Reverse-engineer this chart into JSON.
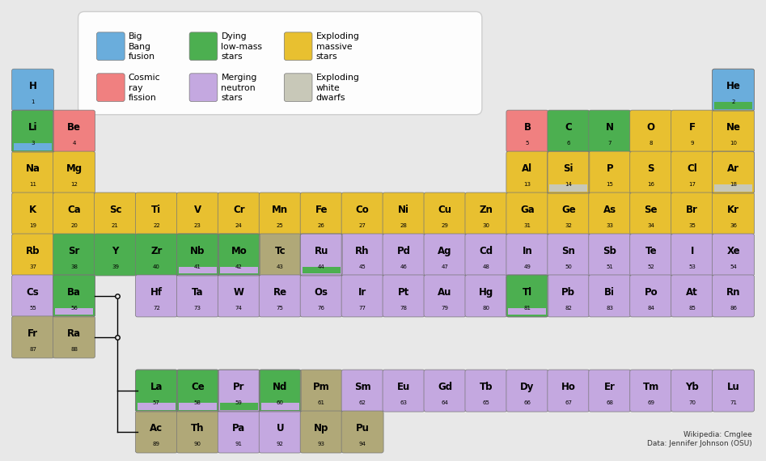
{
  "colors": {
    "big_bang": "#6aaddc",
    "dying_lowmass": "#4caf50",
    "exploding_massive": "#e8c030",
    "cosmic_ray": "#f08080",
    "merging_neutron": "#c4a8e0",
    "exploding_white": "#c8c8b8",
    "dark_tan": "#b0a878",
    "background": "#e8e8e8"
  },
  "elements": [
    {
      "sym": "H",
      "num": 1,
      "row": 0,
      "col": 0,
      "color": "big_bang"
    },
    {
      "sym": "He",
      "num": 2,
      "row": 0,
      "col": 17,
      "color": "big_bang",
      "color2": "dying_lowmass"
    },
    {
      "sym": "Li",
      "num": 3,
      "row": 1,
      "col": 0,
      "color": "dying_lowmass",
      "color2": "big_bang"
    },
    {
      "sym": "Be",
      "num": 4,
      "row": 1,
      "col": 1,
      "color": "cosmic_ray"
    },
    {
      "sym": "B",
      "num": 5,
      "row": 1,
      "col": 12,
      "color": "cosmic_ray"
    },
    {
      "sym": "C",
      "num": 6,
      "row": 1,
      "col": 13,
      "color": "dying_lowmass"
    },
    {
      "sym": "N",
      "num": 7,
      "row": 1,
      "col": 14,
      "color": "dying_lowmass"
    },
    {
      "sym": "O",
      "num": 8,
      "row": 1,
      "col": 15,
      "color": "exploding_massive"
    },
    {
      "sym": "F",
      "num": 9,
      "row": 1,
      "col": 16,
      "color": "exploding_massive"
    },
    {
      "sym": "Ne",
      "num": 10,
      "row": 1,
      "col": 17,
      "color": "exploding_massive"
    },
    {
      "sym": "Na",
      "num": 11,
      "row": 2,
      "col": 0,
      "color": "exploding_massive"
    },
    {
      "sym": "Mg",
      "num": 12,
      "row": 2,
      "col": 1,
      "color": "exploding_massive"
    },
    {
      "sym": "Al",
      "num": 13,
      "row": 2,
      "col": 12,
      "color": "exploding_massive"
    },
    {
      "sym": "Si",
      "num": 14,
      "row": 2,
      "col": 13,
      "color": "exploding_massive",
      "color2": "exploding_white"
    },
    {
      "sym": "P",
      "num": 15,
      "row": 2,
      "col": 14,
      "color": "exploding_massive"
    },
    {
      "sym": "S",
      "num": 16,
      "row": 2,
      "col": 15,
      "color": "exploding_massive"
    },
    {
      "sym": "Cl",
      "num": 17,
      "row": 2,
      "col": 16,
      "color": "exploding_massive"
    },
    {
      "sym": "Ar",
      "num": 18,
      "row": 2,
      "col": 17,
      "color": "exploding_massive",
      "color2": "exploding_white"
    },
    {
      "sym": "K",
      "num": 19,
      "row": 3,
      "col": 0,
      "color": "exploding_massive"
    },
    {
      "sym": "Ca",
      "num": 20,
      "row": 3,
      "col": 1,
      "color": "exploding_massive"
    },
    {
      "sym": "Sc",
      "num": 21,
      "row": 3,
      "col": 2,
      "color": "exploding_massive"
    },
    {
      "sym": "Ti",
      "num": 22,
      "row": 3,
      "col": 3,
      "color": "exploding_massive"
    },
    {
      "sym": "V",
      "num": 23,
      "row": 3,
      "col": 4,
      "color": "exploding_massive"
    },
    {
      "sym": "Cr",
      "num": 24,
      "row": 3,
      "col": 5,
      "color": "exploding_massive"
    },
    {
      "sym": "Mn",
      "num": 25,
      "row": 3,
      "col": 6,
      "color": "exploding_massive"
    },
    {
      "sym": "Fe",
      "num": 26,
      "row": 3,
      "col": 7,
      "color": "exploding_massive"
    },
    {
      "sym": "Co",
      "num": 27,
      "row": 3,
      "col": 8,
      "color": "exploding_massive"
    },
    {
      "sym": "Ni",
      "num": 28,
      "row": 3,
      "col": 9,
      "color": "exploding_massive"
    },
    {
      "sym": "Cu",
      "num": 29,
      "row": 3,
      "col": 10,
      "color": "exploding_massive"
    },
    {
      "sym": "Zn",
      "num": 30,
      "row": 3,
      "col": 11,
      "color": "exploding_massive"
    },
    {
      "sym": "Ga",
      "num": 31,
      "row": 3,
      "col": 12,
      "color": "exploding_massive"
    },
    {
      "sym": "Ge",
      "num": 32,
      "row": 3,
      "col": 13,
      "color": "exploding_massive"
    },
    {
      "sym": "As",
      "num": 33,
      "row": 3,
      "col": 14,
      "color": "exploding_massive"
    },
    {
      "sym": "Se",
      "num": 34,
      "row": 3,
      "col": 15,
      "color": "exploding_massive"
    },
    {
      "sym": "Br",
      "num": 35,
      "row": 3,
      "col": 16,
      "color": "exploding_massive"
    },
    {
      "sym": "Kr",
      "num": 36,
      "row": 3,
      "col": 17,
      "color": "exploding_massive"
    },
    {
      "sym": "Rb",
      "num": 37,
      "row": 4,
      "col": 0,
      "color": "exploding_massive"
    },
    {
      "sym": "Sr",
      "num": 38,
      "row": 4,
      "col": 1,
      "color": "dying_lowmass"
    },
    {
      "sym": "Y",
      "num": 39,
      "row": 4,
      "col": 2,
      "color": "dying_lowmass"
    },
    {
      "sym": "Zr",
      "num": 40,
      "row": 4,
      "col": 3,
      "color": "dying_lowmass"
    },
    {
      "sym": "Nb",
      "num": 41,
      "row": 4,
      "col": 4,
      "color": "dying_lowmass",
      "color2": "merging_neutron"
    },
    {
      "sym": "Mo",
      "num": 42,
      "row": 4,
      "col": 5,
      "color": "dying_lowmass",
      "color2": "merging_neutron"
    },
    {
      "sym": "Tc",
      "num": 43,
      "row": 4,
      "col": 6,
      "color": "dark_tan"
    },
    {
      "sym": "Ru",
      "num": 44,
      "row": 4,
      "col": 7,
      "color": "merging_neutron",
      "color2": "dying_lowmass"
    },
    {
      "sym": "Rh",
      "num": 45,
      "row": 4,
      "col": 8,
      "color": "merging_neutron"
    },
    {
      "sym": "Pd",
      "num": 46,
      "row": 4,
      "col": 9,
      "color": "merging_neutron"
    },
    {
      "sym": "Ag",
      "num": 47,
      "row": 4,
      "col": 10,
      "color": "merging_neutron"
    },
    {
      "sym": "Cd",
      "num": 48,
      "row": 4,
      "col": 11,
      "color": "merging_neutron"
    },
    {
      "sym": "In",
      "num": 49,
      "row": 4,
      "col": 12,
      "color": "merging_neutron"
    },
    {
      "sym": "Sn",
      "num": 50,
      "row": 4,
      "col": 13,
      "color": "merging_neutron"
    },
    {
      "sym": "Sb",
      "num": 51,
      "row": 4,
      "col": 14,
      "color": "merging_neutron"
    },
    {
      "sym": "Te",
      "num": 52,
      "row": 4,
      "col": 15,
      "color": "merging_neutron"
    },
    {
      "sym": "I",
      "num": 53,
      "row": 4,
      "col": 16,
      "color": "merging_neutron"
    },
    {
      "sym": "Xe",
      "num": 54,
      "row": 4,
      "col": 17,
      "color": "merging_neutron"
    },
    {
      "sym": "Cs",
      "num": 55,
      "row": 5,
      "col": 0,
      "color": "merging_neutron"
    },
    {
      "sym": "Ba",
      "num": 56,
      "row": 5,
      "col": 1,
      "color": "dying_lowmass",
      "color2": "merging_neutron"
    },
    {
      "sym": "Hf",
      "num": 72,
      "row": 5,
      "col": 3,
      "color": "merging_neutron"
    },
    {
      "sym": "Ta",
      "num": 73,
      "row": 5,
      "col": 4,
      "color": "merging_neutron"
    },
    {
      "sym": "W",
      "num": 74,
      "row": 5,
      "col": 5,
      "color": "merging_neutron"
    },
    {
      "sym": "Re",
      "num": 75,
      "row": 5,
      "col": 6,
      "color": "merging_neutron"
    },
    {
      "sym": "Os",
      "num": 76,
      "row": 5,
      "col": 7,
      "color": "merging_neutron"
    },
    {
      "sym": "Ir",
      "num": 77,
      "row": 5,
      "col": 8,
      "color": "merging_neutron"
    },
    {
      "sym": "Pt",
      "num": 78,
      "row": 5,
      "col": 9,
      "color": "merging_neutron"
    },
    {
      "sym": "Au",
      "num": 79,
      "row": 5,
      "col": 10,
      "color": "merging_neutron"
    },
    {
      "sym": "Hg",
      "num": 80,
      "row": 5,
      "col": 11,
      "color": "merging_neutron"
    },
    {
      "sym": "Tl",
      "num": 81,
      "row": 5,
      "col": 12,
      "color": "dying_lowmass",
      "color2": "merging_neutron"
    },
    {
      "sym": "Pb",
      "num": 82,
      "row": 5,
      "col": 13,
      "color": "merging_neutron"
    },
    {
      "sym": "Bi",
      "num": 83,
      "row": 5,
      "col": 14,
      "color": "merging_neutron"
    },
    {
      "sym": "Po",
      "num": 84,
      "row": 5,
      "col": 15,
      "color": "merging_neutron"
    },
    {
      "sym": "At",
      "num": 85,
      "row": 5,
      "col": 16,
      "color": "merging_neutron"
    },
    {
      "sym": "Rn",
      "num": 86,
      "row": 5,
      "col": 17,
      "color": "merging_neutron"
    },
    {
      "sym": "Fr",
      "num": 87,
      "row": 6,
      "col": 0,
      "color": "dark_tan"
    },
    {
      "sym": "Ra",
      "num": 88,
      "row": 6,
      "col": 1,
      "color": "dark_tan"
    },
    {
      "sym": "La",
      "num": 57,
      "row": 7,
      "col": 3,
      "color": "dying_lowmass",
      "color2": "merging_neutron"
    },
    {
      "sym": "Ce",
      "num": 58,
      "row": 7,
      "col": 4,
      "color": "dying_lowmass",
      "color2": "merging_neutron"
    },
    {
      "sym": "Pr",
      "num": 59,
      "row": 7,
      "col": 5,
      "color": "merging_neutron",
      "color2": "dying_lowmass"
    },
    {
      "sym": "Nd",
      "num": 60,
      "row": 7,
      "col": 6,
      "color": "dying_lowmass",
      "color2": "merging_neutron"
    },
    {
      "sym": "Pm",
      "num": 61,
      "row": 7,
      "col": 7,
      "color": "dark_tan"
    },
    {
      "sym": "Sm",
      "num": 62,
      "row": 7,
      "col": 8,
      "color": "merging_neutron"
    },
    {
      "sym": "Eu",
      "num": 63,
      "row": 7,
      "col": 9,
      "color": "merging_neutron"
    },
    {
      "sym": "Gd",
      "num": 64,
      "row": 7,
      "col": 10,
      "color": "merging_neutron"
    },
    {
      "sym": "Tb",
      "num": 65,
      "row": 7,
      "col": 11,
      "color": "merging_neutron"
    },
    {
      "sym": "Dy",
      "num": 66,
      "row": 7,
      "col": 12,
      "color": "merging_neutron"
    },
    {
      "sym": "Ho",
      "num": 67,
      "row": 7,
      "col": 13,
      "color": "merging_neutron"
    },
    {
      "sym": "Er",
      "num": 68,
      "row": 7,
      "col": 14,
      "color": "merging_neutron"
    },
    {
      "sym": "Tm",
      "num": 69,
      "row": 7,
      "col": 15,
      "color": "merging_neutron"
    },
    {
      "sym": "Yb",
      "num": 70,
      "row": 7,
      "col": 16,
      "color": "merging_neutron"
    },
    {
      "sym": "Lu",
      "num": 71,
      "row": 7,
      "col": 17,
      "color": "merging_neutron"
    },
    {
      "sym": "Ac",
      "num": 89,
      "row": 8,
      "col": 3,
      "color": "dark_tan"
    },
    {
      "sym": "Th",
      "num": 90,
      "row": 8,
      "col": 4,
      "color": "dark_tan"
    },
    {
      "sym": "Pa",
      "num": 91,
      "row": 8,
      "col": 5,
      "color": "merging_neutron"
    },
    {
      "sym": "U",
      "num": 92,
      "row": 8,
      "col": 6,
      "color": "merging_neutron"
    },
    {
      "sym": "Np",
      "num": 93,
      "row": 8,
      "col": 7,
      "color": "dark_tan"
    },
    {
      "sym": "Pu",
      "num": 94,
      "row": 8,
      "col": 8,
      "color": "dark_tan"
    }
  ],
  "legend_items": [
    {
      "label": "Big\nBang\nfusion",
      "color": "big_bang",
      "col": 0
    },
    {
      "label": "Dying\nlow-mass\nstars",
      "color": "dying_lowmass",
      "col": 1
    },
    {
      "label": "Exploding\nmassive\nstars",
      "color": "exploding_massive",
      "col": 2
    },
    {
      "label": "Cosmic\nray\nfission",
      "color": "cosmic_ray",
      "col": 0
    },
    {
      "label": "Merging\nneutron\nstars",
      "color": "merging_neutron",
      "col": 1
    },
    {
      "label": "Exploding\nwhite\ndwarfs",
      "color": "exploding_white",
      "col": 2
    }
  ],
  "credit": "Wikipedia: Cmglee\nData: Jennifer Johnson (OSU)"
}
